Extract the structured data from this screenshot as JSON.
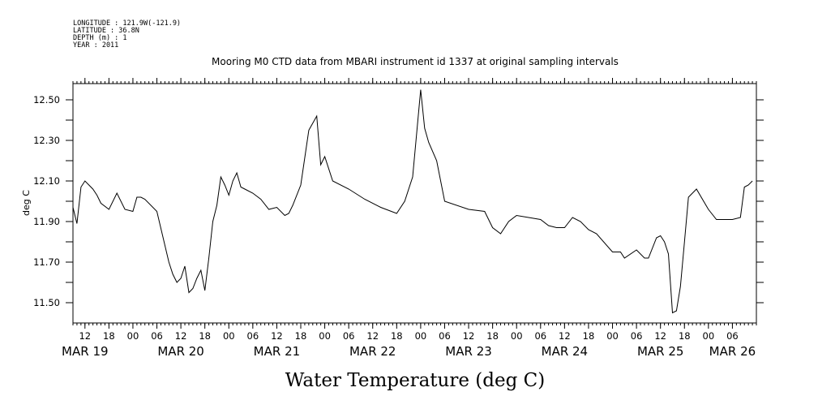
{
  "metadata": {
    "longitude": "LONGITUDE : 121.9W(-121.9)",
    "latitude": "LATITUDE : 36.8N",
    "depth": "DEPTH (m) : 1",
    "year": "YEAR : 2011"
  },
  "chart_data": {
    "type": "line",
    "title": "Mooring M0 CTD data from MBARI instrument id 1337 at original sampling intervals",
    "xlabel": "Water Temperature (deg C)",
    "ylabel": "deg C",
    "ylim": [
      11.4,
      12.58
    ],
    "y_ticks": [
      "12.50",
      "12.30",
      "12.10",
      "11.90",
      "11.70",
      "11.50"
    ],
    "x_start": "2011-03-19T09:00",
    "x_end": "2011-03-26T12:00",
    "x_hour_ticks": [
      "12",
      "18",
      "00",
      "06",
      "12",
      "18",
      "00",
      "06",
      "12",
      "18",
      "00",
      "06",
      "12",
      "18",
      "00",
      "06",
      "12",
      "18",
      "00",
      "06",
      "12",
      "18",
      "00",
      "06",
      "12",
      "18",
      "00",
      "06"
    ],
    "x_hour_tick_times": [
      "2011-03-19T12:00",
      "2011-03-19T18:00",
      "2011-03-20T00:00",
      "2011-03-20T06:00",
      "2011-03-20T12:00",
      "2011-03-20T18:00",
      "2011-03-21T00:00",
      "2011-03-21T06:00",
      "2011-03-21T12:00",
      "2011-03-21T18:00",
      "2011-03-22T00:00",
      "2011-03-22T06:00",
      "2011-03-22T12:00",
      "2011-03-22T18:00",
      "2011-03-23T00:00",
      "2011-03-23T06:00",
      "2011-03-23T12:00",
      "2011-03-23T18:00",
      "2011-03-24T00:00",
      "2011-03-24T06:00",
      "2011-03-24T12:00",
      "2011-03-24T18:00",
      "2011-03-25T00:00",
      "2011-03-25T06:00",
      "2011-03-25T12:00",
      "2011-03-25T18:00",
      "2011-03-26T00:00",
      "2011-03-26T06:00"
    ],
    "x_date_labels": [
      "MAR 19",
      "MAR 20",
      "MAR 21",
      "MAR 22",
      "MAR 23",
      "MAR 24",
      "MAR 25",
      "MAR 26"
    ],
    "x_date_label_times": [
      "2011-03-19T12:00",
      "2011-03-20T12:00",
      "2011-03-21T12:00",
      "2011-03-22T12:00",
      "2011-03-23T12:00",
      "2011-03-24T12:00",
      "2011-03-25T12:00",
      "2011-03-26T06:00"
    ],
    "grid": false,
    "series": [
      {
        "color": "#000000",
        "x": [
          "2011-03-19T09:00",
          "2011-03-19T10:00",
          "2011-03-19T11:00",
          "2011-03-19T12:00",
          "2011-03-19T13:00",
          "2011-03-19T14:00",
          "2011-03-19T15:00",
          "2011-03-19T16:00",
          "2011-03-19T18:00",
          "2011-03-19T20:00",
          "2011-03-19T22:00",
          "2011-03-20T00:00",
          "2011-03-20T01:00",
          "2011-03-20T02:00",
          "2011-03-20T03:00",
          "2011-03-20T06:00",
          "2011-03-20T09:00",
          "2011-03-20T10:00",
          "2011-03-20T11:00",
          "2011-03-20T12:00",
          "2011-03-20T13:00",
          "2011-03-20T14:00",
          "2011-03-20T15:00",
          "2011-03-20T16:00",
          "2011-03-20T17:00",
          "2011-03-20T18:00",
          "2011-03-20T19:00",
          "2011-03-20T20:00",
          "2011-03-20T21:00",
          "2011-03-20T22:00",
          "2011-03-20T23:00",
          "2011-03-21T00:00",
          "2011-03-21T01:00",
          "2011-03-21T02:00",
          "2011-03-21T03:00",
          "2011-03-21T04:00",
          "2011-03-21T06:00",
          "2011-03-21T08:00",
          "2011-03-21T10:00",
          "2011-03-21T12:00",
          "2011-03-21T14:00",
          "2011-03-21T15:00",
          "2011-03-21T16:00",
          "2011-03-21T18:00",
          "2011-03-21T20:00",
          "2011-03-21T22:00",
          "2011-03-21T23:00",
          "2011-03-22T00:00",
          "2011-03-22T02:00",
          "2011-03-22T06:00",
          "2011-03-22T10:00",
          "2011-03-22T14:00",
          "2011-03-22T18:00",
          "2011-03-22T20:00",
          "2011-03-22T22:00",
          "2011-03-23T00:00",
          "2011-03-23T01:00",
          "2011-03-23T02:00",
          "2011-03-23T04:00",
          "2011-03-23T06:00",
          "2011-03-23T12:00",
          "2011-03-23T16:00",
          "2011-03-23T18:00",
          "2011-03-23T20:00",
          "2011-03-23T22:00",
          "2011-03-24T00:00",
          "2011-03-24T06:00",
          "2011-03-24T08:00",
          "2011-03-24T10:00",
          "2011-03-24T12:00",
          "2011-03-24T14:00",
          "2011-03-24T16:00",
          "2011-03-24T18:00",
          "2011-03-24T20:00",
          "2011-03-25T00:00",
          "2011-03-25T02:00",
          "2011-03-25T03:00",
          "2011-03-25T06:00",
          "2011-03-25T08:00",
          "2011-03-25T09:00",
          "2011-03-25T11:00",
          "2011-03-25T12:00",
          "2011-03-25T13:00",
          "2011-03-25T14:00",
          "2011-03-25T15:00",
          "2011-03-25T16:00",
          "2011-03-25T17:00",
          "2011-03-25T18:00",
          "2011-03-25T19:00",
          "2011-03-25T21:00",
          "2011-03-26T00:00",
          "2011-03-26T02:00",
          "2011-03-26T04:00",
          "2011-03-26T06:00",
          "2011-03-26T08:00",
          "2011-03-26T09:00",
          "2011-03-26T10:00",
          "2011-03-26T11:00"
        ],
        "y": [
          11.97,
          11.89,
          12.07,
          12.1,
          12.08,
          12.06,
          12.03,
          11.99,
          11.96,
          12.04,
          11.96,
          11.95,
          12.02,
          12.02,
          12.01,
          11.95,
          11.7,
          11.64,
          11.6,
          11.62,
          11.68,
          11.55,
          11.57,
          11.62,
          11.66,
          11.56,
          11.72,
          11.9,
          11.98,
          12.12,
          12.08,
          12.03,
          12.1,
          12.14,
          12.07,
          12.06,
          12.04,
          12.01,
          11.96,
          11.97,
          11.93,
          11.94,
          11.98,
          12.08,
          12.35,
          12.42,
          12.18,
          12.22,
          12.1,
          12.06,
          12.01,
          11.97,
          11.94,
          12.0,
          12.12,
          12.55,
          12.36,
          12.29,
          12.2,
          12.0,
          11.96,
          11.95,
          11.87,
          11.84,
          11.9,
          11.93,
          11.91,
          11.88,
          11.87,
          11.87,
          11.92,
          11.9,
          11.86,
          11.84,
          11.75,
          11.75,
          11.72,
          11.76,
          11.72,
          11.72,
          11.82,
          11.83,
          11.8,
          11.74,
          11.45,
          11.46,
          11.58,
          11.8,
          12.02,
          12.06,
          11.96,
          11.91,
          11.91,
          11.91,
          11.92,
          12.07,
          12.08,
          12.1
        ]
      }
    ]
  }
}
